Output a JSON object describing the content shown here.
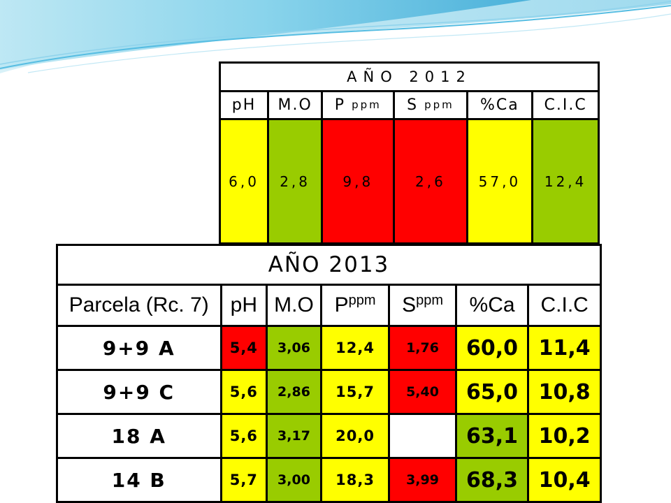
{
  "table_2012": {
    "title": "AÑO  2012",
    "headers": {
      "ph": "pH",
      "mo": "M.O",
      "p": "P",
      "p_unit": "ppm",
      "s": "S",
      "s_unit": "ppm",
      "ca": "%Ca",
      "cic": "C.I.C"
    },
    "values": {
      "ph": "6,0",
      "mo": "2,8",
      "p": "9,8",
      "s": "2,6",
      "ca": "57,0",
      "cic": "12,4"
    },
    "colors": {
      "ph": "#ffff00",
      "mo": "#99cc00",
      "p": "#ff0000",
      "s": "#ff0000",
      "ca": "#ffff00",
      "cic": "#99cc00"
    }
  },
  "table_2013": {
    "title": "AÑO  2013",
    "headers": {
      "parcela": "Parcela (Rc. 7)",
      "ph": "pH",
      "mo": "M.O",
      "p": "P",
      "p_unit": "ppm",
      "s": "S",
      "s_unit": "ppm",
      "ca": "%Ca",
      "cic": "C.I.C"
    },
    "rows": [
      {
        "parcela": "9+9  A",
        "ph": "5,4",
        "mo": "3,06",
        "p": "12,4",
        "s": "1,76",
        "ca": "60,0",
        "cic": "11,4",
        "colors": {
          "ph": "#ff0000",
          "mo": "#99cc00",
          "p": "#ffff00",
          "s": "#ff0000",
          "ca": "#ffff00",
          "cic": "#ffff00"
        }
      },
      {
        "parcela": "9+9  C",
        "ph": "5,6",
        "mo": "2,86",
        "p": "15,7",
        "s": "5,40",
        "ca": "65,0",
        "cic": "10,8",
        "colors": {
          "ph": "#ffff00",
          "mo": "#99cc00",
          "p": "#ffff00",
          "s": "#ff0000",
          "ca": "#ffff00",
          "cic": "#ffff00"
        }
      },
      {
        "parcela": "18  A",
        "ph": "5,6",
        "mo": "3,17",
        "p": "20,0",
        "s": "",
        "ca": "63,1",
        "cic": "10,2",
        "colors": {
          "ph": "#ffff00",
          "mo": "#99cc00",
          "p": "#ffff00",
          "s": "#ffffff",
          "ca": "#99cc00",
          "cic": "#ffff00"
        }
      },
      {
        "parcela": "14  B",
        "ph": "5,7",
        "mo": "3,00",
        "p": "18,3",
        "s": "3,99",
        "ca": "68,3",
        "cic": "10,4",
        "colors": {
          "ph": "#ffff00",
          "mo": "#99cc00",
          "p": "#ffff00",
          "s": "#ff0000",
          "ca": "#99cc00",
          "cic": "#ffff00"
        }
      }
    ]
  }
}
